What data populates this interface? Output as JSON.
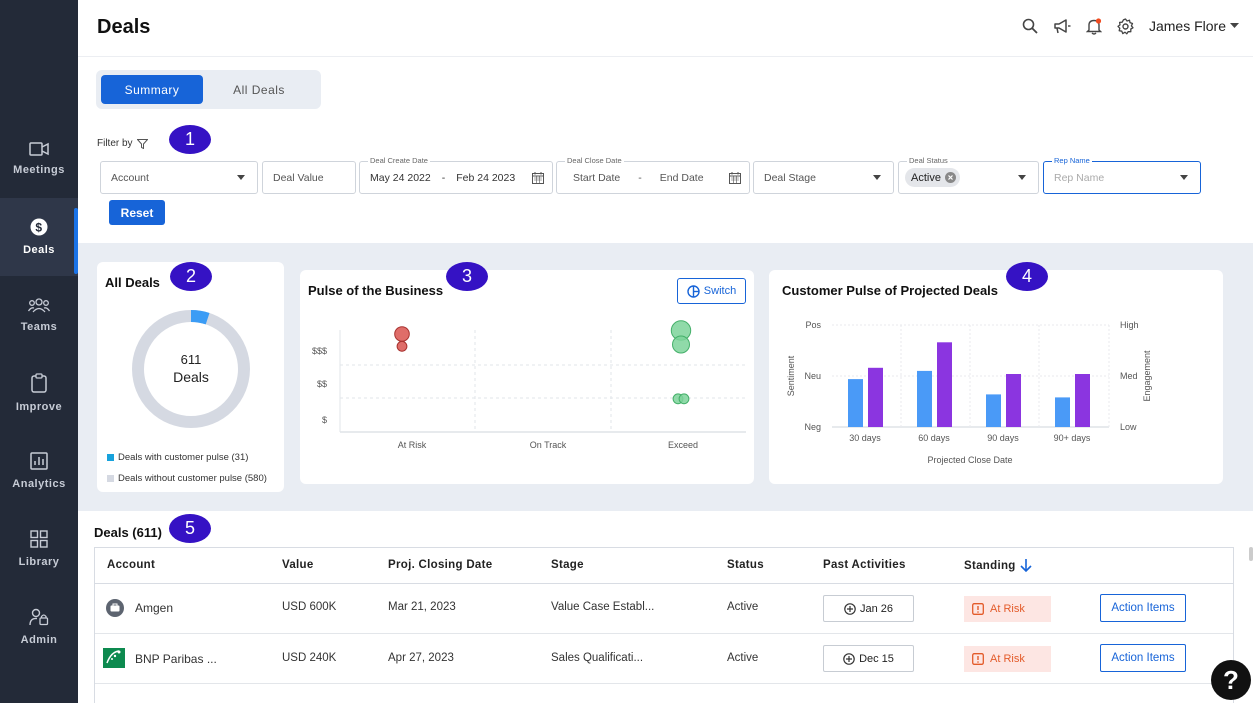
{
  "sidebar": {
    "items": [
      {
        "label": "Meetings",
        "icon": "video-camera-icon"
      },
      {
        "label": "Deals",
        "icon": "dollar-icon",
        "active": true
      },
      {
        "label": "Teams",
        "icon": "team-icon"
      },
      {
        "label": "Improve",
        "icon": "clipboard-icon"
      },
      {
        "label": "Analytics",
        "icon": "bar-chart-icon"
      },
      {
        "label": "Library",
        "icon": "grid-icon"
      },
      {
        "label": "Admin",
        "icon": "admin-user-lock-icon"
      }
    ]
  },
  "header": {
    "title": "Deals",
    "user_name": "James Flore",
    "icons": [
      "search-icon",
      "megaphone-icon",
      "bell-icon",
      "settings-icon"
    ]
  },
  "tabs": [
    "Summary",
    "All Deals"
  ],
  "filters": {
    "filter_by_label": "Filter by",
    "account_placeholder": "Account",
    "deal_value_placeholder": "Deal Value",
    "create_date_label": "Deal Create Date",
    "create_date_start": "May 24 2022",
    "create_date_sep": "-",
    "create_date_end": "Feb 24 2023",
    "close_date_label": "Deal Close Date",
    "close_date_start": "Start Date",
    "close_date_sep": "-",
    "close_date_end": "End Date",
    "deal_stage_placeholder": "Deal Stage",
    "deal_status_label": "Deal Status",
    "deal_status_chip": "Active",
    "rep_name_label": "Rep Name",
    "rep_name_placeholder": "Rep Name",
    "reset_label": "Reset"
  },
  "annotations": [
    "1",
    "2",
    "3",
    "4",
    "5"
  ],
  "all_deals_card": {
    "title": "All Deals",
    "total": "611",
    "total_label": "Deals",
    "with_pulse": 31,
    "without_pulse": 580,
    "legend_with": "Deals with customer pulse (31)",
    "legend_without": "Deals without customer pulse (580)",
    "colors": {
      "with": "#3b9cf5",
      "without": "#d5d9e2"
    }
  },
  "pulse_card": {
    "title": "Pulse of the Business",
    "switch_label": "Switch",
    "y_ticks": [
      "$$$",
      "$$",
      "$"
    ],
    "x_ticks": [
      "At Risk",
      "On Track",
      "Exceed"
    ]
  },
  "customer_pulse_card": {
    "title": "Customer Pulse of Projected Deals",
    "y_left_title": "Sentiment",
    "y_left_ticks": [
      "Pos",
      "Neu",
      "Neg"
    ],
    "y_right_title": "Engagement",
    "y_right_ticks": [
      "High",
      "Med",
      "Low"
    ],
    "x_title": "Projected Close Date"
  },
  "chart_data": [
    {
      "type": "pie",
      "categories": [
        "Deals with customer pulse (31)",
        "Deals without customer pulse (580)"
      ],
      "values": [
        31,
        580
      ],
      "title": "All Deals"
    },
    {
      "type": "scatter",
      "title": "Pulse of the Business",
      "x_categories": [
        "At Risk",
        "On Track",
        "Exceed"
      ],
      "y_categories": [
        "$",
        "$$",
        "$$$"
      ],
      "series": [
        {
          "color": "#d9534f",
          "points": [
            {
              "x": "At Risk",
              "y": 2.8,
              "size": 2
            },
            {
              "x": "At Risk",
              "y": 2.45,
              "size": 1
            }
          ]
        },
        {
          "color": "#7dd39a",
          "points": [
            {
              "x": "Exceed",
              "y": 2.9,
              "size": 3
            },
            {
              "x": "Exceed",
              "y": 2.5,
              "size": 2.5
            },
            {
              "x": "Exceed",
              "y": 0.95,
              "size": 1
            },
            {
              "x": "Exceed",
              "y": 0.95,
              "size": 1
            }
          ]
        }
      ]
    },
    {
      "type": "bar",
      "title": "Customer Pulse of Projected Deals",
      "categories": [
        "30 days",
        "60 days",
        "90 days",
        "90+ days"
      ],
      "xlabel": "Projected Close Date",
      "series": [
        {
          "name": "Sentiment",
          "color": "#4a9af7",
          "values": [
            0.47,
            0.55,
            0.32,
            0.29
          ]
        },
        {
          "name": "Engagement",
          "color": "#8b35e0",
          "values": [
            0.58,
            0.83,
            0.52,
            0.52
          ]
        }
      ],
      "ylim": [
        0,
        1
      ]
    }
  ],
  "table": {
    "title": "Deals (611)",
    "columns": [
      "Account",
      "Value",
      "Proj. Closing Date",
      "Stage",
      "Status",
      "Past Activities",
      "Standing"
    ],
    "rows": [
      {
        "account": "Amgen",
        "value": "USD 600K",
        "date": "Mar 21, 2023",
        "stage": "Value Case Establ...",
        "status": "Active",
        "activity": "Jan 26",
        "standing": "At Risk",
        "action": "Action Items"
      },
      {
        "account": "BNP Paribas ...",
        "value": "USD 240K",
        "date": "Apr 27, 2023",
        "stage": "Sales Qualificati...",
        "status": "Active",
        "activity": "Dec 15",
        "standing": "At Risk",
        "action": "Action Items"
      }
    ]
  },
  "help_label": "?"
}
